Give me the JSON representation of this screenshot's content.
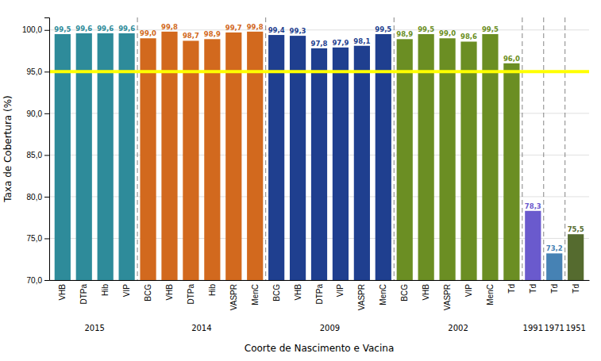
{
  "chart_data": {
    "type": "bar",
    "categories": [
      "VHB",
      "DTPa",
      "Hib",
      "VIP",
      "BCG",
      "VHB",
      "DTPa",
      "Hib",
      "VASPR",
      "MenC",
      "BCG",
      "VHB",
      "DTPa",
      "VIP",
      "VASPR",
      "MenC",
      "BCG",
      "VHB",
      "VASPR",
      "VIP",
      "MenC",
      "Td",
      "Td",
      "Td",
      "Td"
    ],
    "groups": [
      "2015",
      "2015",
      "2015",
      "2015",
      "2014",
      "2014",
      "2014",
      "2014",
      "2014",
      "2014",
      "2009",
      "2009",
      "2009",
      "2009",
      "2009",
      "2009",
      "2002",
      "2002",
      "2002",
      "2002",
      "2002",
      "2002",
      "1991",
      "1971",
      "1951"
    ],
    "values": [
      99.5,
      99.6,
      99.6,
      99.6,
      99.0,
      99.8,
      98.7,
      98.9,
      99.7,
      99.8,
      99.4,
      99.3,
      97.8,
      97.9,
      98.1,
      99.5,
      98.9,
      99.5,
      99.0,
      98.6,
      99.5,
      96.0,
      78.3,
      73.2,
      75.5
    ],
    "value_labels": [
      "99,5",
      "99,6",
      "99,6",
      "99,6",
      "99,0",
      "99,8",
      "98,7",
      "98,9",
      "99,7",
      "99,8",
      "99,4",
      "99,3",
      "97,8",
      "97,9",
      "98,1",
      "99,5",
      "98,9",
      "99,5",
      "99,0",
      "98,6",
      "99,5",
      "96,0",
      "78,3",
      "73,2",
      "75,5"
    ],
    "colors": [
      "#2E8B9A",
      "#2E8B9A",
      "#2E8B9A",
      "#2E8B9A",
      "#D2691E",
      "#D2691E",
      "#D2691E",
      "#D2691E",
      "#D2691E",
      "#D2691E",
      "#1F3F8F",
      "#1F3F8F",
      "#1F3F8F",
      "#1F3F8F",
      "#1F3F8F",
      "#1F3F8F",
      "#6B8E23",
      "#6B8E23",
      "#6B8E23",
      "#6B8E23",
      "#6B8E23",
      "#6B8E23",
      "#6A5ACD",
      "#4682B4",
      "#556B2F"
    ],
    "data_labels": true,
    "xlabel": "Coorte de Nascimento e Vacina",
    "ylabel": "Taxa de Cobertura (%)",
    "ylim": [
      70.0,
      101.5
    ],
    "yticks": [
      {
        "value": 70.0,
        "label": "70,0"
      },
      {
        "value": 75.0,
        "label": "75,0"
      },
      {
        "value": 80.0,
        "label": "80,0"
      },
      {
        "value": 85.0,
        "label": "85,0"
      },
      {
        "value": 90.0,
        "label": "90,0"
      },
      {
        "value": 95.0,
        "label": "95,0"
      },
      {
        "value": 100.0,
        "label": "100,0"
      }
    ],
    "reference_line": {
      "value": 95.0,
      "color": "#FFFF00"
    },
    "grid": true
  }
}
